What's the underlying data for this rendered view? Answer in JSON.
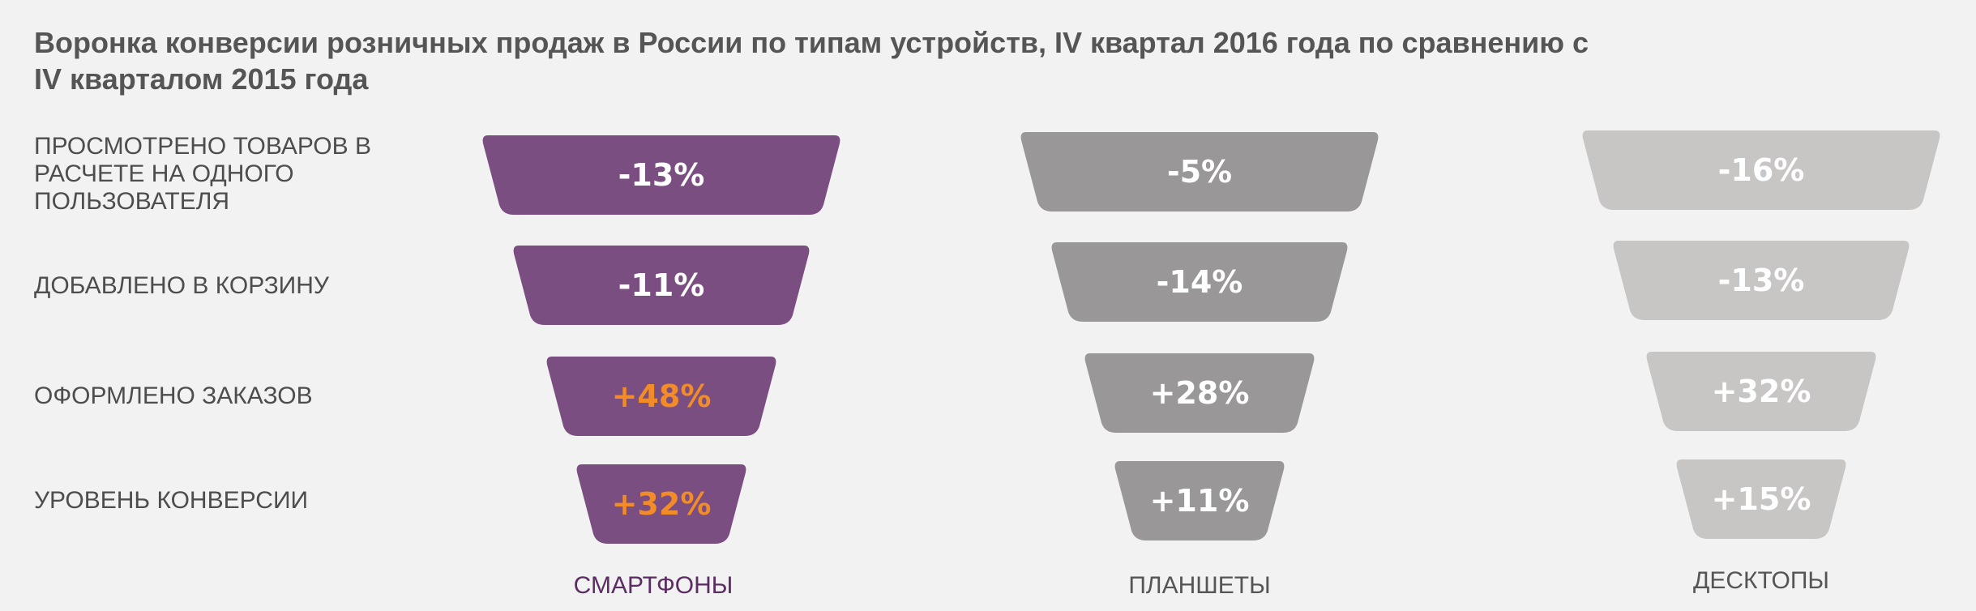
{
  "title": "Воронка конверсии розничных продаж в России по типам устройств, IV квартал 2016 года по сравнению с IV кварталом 2015 года",
  "chart_data": {
    "type": "funnel",
    "title": "Воронка конверсии розничных продаж в России по типам устройств, IV квартал 2016 года по сравнению с IV кварталом 2015 года",
    "stages": [
      "ПРОСМОТРЕНО ТОВАРОВ В РАСЧЕТЕ НА ОДНОГО ПОЛЬЗОВАТЕЛЯ",
      "ДОБАВЛЕНО В КОРЗИНУ",
      "ОФОРМЛЕНО ЗАКАЗОВ",
      "УРОВЕНЬ КОНВЕРСИИ"
    ],
    "series": [
      {
        "name": "СМАРТФОНЫ",
        "values": [
          -13,
          -11,
          48,
          32
        ],
        "labels": [
          "-13%",
          "-11%",
          "+48%",
          "+32%"
        ],
        "color": "#7a4e80",
        "label_color": "#5b2d63",
        "text_colors": [
          "#ffffff",
          "#ffffff",
          "#f28c28",
          "#f28c28"
        ]
      },
      {
        "name": "ПЛАНШЕТЫ",
        "values": [
          -5,
          -14,
          28,
          11
        ],
        "labels": [
          "-5%",
          "-14%",
          "+28%",
          "+11%"
        ],
        "color": "#999797",
        "label_color": "#555555",
        "text_colors": [
          "#ffffff",
          "#ffffff",
          "#ffffff",
          "#ffffff"
        ]
      },
      {
        "name": "ДЕСКТОПЫ",
        "values": [
          -16,
          -13,
          32,
          15
        ],
        "labels": [
          "-16%",
          "-13%",
          "+32%",
          "+15%"
        ],
        "color": "#c8c5c5",
        "label_color": "#555555",
        "text_colors": [
          "#ffffff",
          "#ffffff",
          "#ffffff",
          "#ffffff"
        ]
      }
    ]
  }
}
